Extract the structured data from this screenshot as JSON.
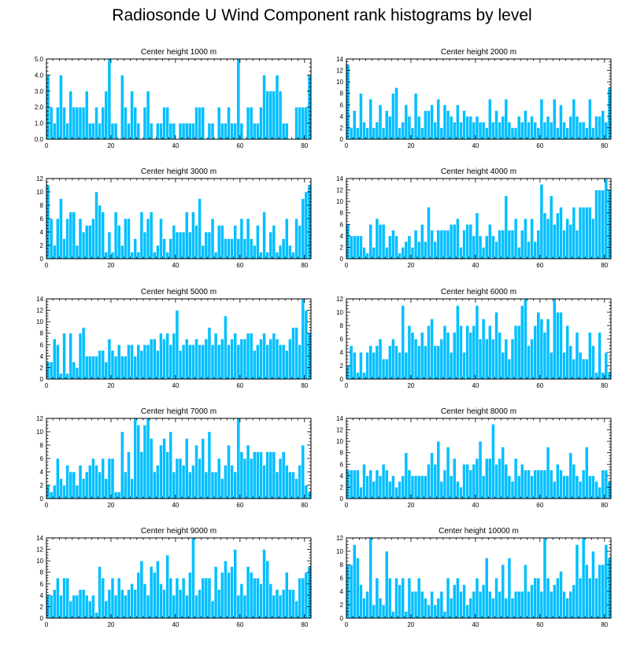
{
  "title": "Radiosonde U Wind Component rank histograms by level",
  "colors": {
    "bar": "#00bfff",
    "bar_edge": "#ffffff",
    "axis": "#000000"
  },
  "chart_data": [
    {
      "type": "bar",
      "title": "Center height 1000 m",
      "xlim": [
        0,
        82
      ],
      "ylim": [
        0,
        5
      ],
      "xticks": [
        0,
        20,
        40,
        60,
        80
      ],
      "yticks": [
        0,
        1,
        2,
        3,
        4,
        5
      ],
      "ytick_labels": [
        "0.0",
        "1.0",
        "2.0",
        "3.0",
        "4.0",
        "5.0"
      ],
      "values": [
        4,
        2,
        1,
        2,
        4,
        2,
        1,
        3,
        2,
        2,
        2,
        2,
        3,
        1,
        1,
        2,
        1,
        2,
        3,
        5,
        1,
        1,
        0,
        4,
        2,
        1,
        3,
        2,
        1,
        0,
        2,
        3,
        1,
        0,
        1,
        1,
        2,
        2,
        1,
        1,
        0,
        1,
        1,
        1,
        1,
        1,
        2,
        2,
        2,
        0,
        1,
        1,
        0,
        2,
        1,
        1,
        2,
        1,
        1,
        5,
        1,
        0,
        2,
        2,
        1,
        1,
        2,
        4,
        3,
        3,
        3,
        4,
        3,
        1,
        1,
        0,
        0,
        2,
        2,
        2,
        2,
        4
      ]
    },
    {
      "type": "bar",
      "title": "Center height 2000 m",
      "xlim": [
        0,
        82
      ],
      "ylim": [
        0,
        14
      ],
      "xticks": [
        0,
        20,
        40,
        60,
        80
      ],
      "yticks": [
        0,
        2,
        4,
        6,
        8,
        10,
        12,
        14
      ],
      "ytick_labels": [
        "0",
        "2",
        "4",
        "6",
        "8",
        "10",
        "12",
        "14"
      ],
      "values": [
        13,
        2,
        5,
        2,
        8,
        3,
        2,
        7,
        2,
        3,
        6,
        2,
        5,
        4,
        8,
        9,
        2,
        3,
        6,
        4,
        2,
        8,
        4,
        2,
        5,
        5,
        6,
        3,
        7,
        2,
        6,
        5,
        4,
        3,
        6,
        3,
        5,
        4,
        4,
        3,
        4,
        3,
        3,
        2,
        7,
        3,
        5,
        3,
        4,
        7,
        3,
        2,
        2,
        4,
        3,
        5,
        3,
        4,
        3,
        2,
        7,
        3,
        4,
        3,
        7,
        2,
        6,
        3,
        2,
        4,
        7,
        4,
        3,
        3,
        2,
        7,
        2,
        4,
        4,
        5,
        3,
        9
      ]
    },
    {
      "type": "bar",
      "title": "Center height 3000 m",
      "xlim": [
        0,
        82
      ],
      "ylim": [
        0,
        12
      ],
      "xticks": [
        0,
        20,
        40,
        60,
        80
      ],
      "yticks": [
        0,
        2,
        4,
        6,
        8,
        10,
        12
      ],
      "ytick_labels": [
        "0",
        "2",
        "4",
        "6",
        "8",
        "10",
        "12"
      ],
      "values": [
        11,
        6,
        2,
        6,
        9,
        3,
        6,
        7,
        7,
        2,
        6,
        4,
        5,
        5,
        6,
        10,
        8,
        7,
        1,
        4,
        1,
        7,
        5,
        2,
        6,
        6,
        1,
        3,
        1,
        7,
        4,
        6,
        7,
        1,
        2,
        6,
        3,
        1,
        3,
        5,
        4,
        4,
        4,
        7,
        4,
        7,
        5,
        9,
        2,
        4,
        4,
        6,
        1,
        5,
        5,
        3,
        3,
        3,
        5,
        3,
        6,
        3,
        6,
        3,
        2,
        5,
        1,
        7,
        1,
        4,
        5,
        1,
        2,
        3,
        6,
        2,
        1,
        6,
        5,
        9,
        10,
        11
      ]
    },
    {
      "type": "bar",
      "title": "Center height 4000 m",
      "xlim": [
        0,
        82
      ],
      "ylim": [
        0,
        14
      ],
      "xticks": [
        0,
        20,
        40,
        60,
        80
      ],
      "yticks": [
        0,
        2,
        4,
        6,
        8,
        10,
        12,
        14
      ],
      "ytick_labels": [
        "0",
        "2",
        "4",
        "6",
        "8",
        "10",
        "12",
        "14"
      ],
      "values": [
        6,
        4,
        4,
        4,
        4,
        2,
        1,
        6,
        2,
        7,
        6,
        6,
        2,
        4,
        5,
        4,
        1,
        2,
        3,
        4,
        2,
        5,
        3,
        6,
        3,
        9,
        5,
        3,
        5,
        5,
        5,
        5,
        6,
        6,
        7,
        2,
        5,
        6,
        6,
        4,
        8,
        4,
        2,
        4,
        6,
        4,
        3,
        5,
        5,
        11,
        5,
        5,
        7,
        2,
        5,
        7,
        3,
        7,
        3,
        5,
        13,
        8,
        7,
        11,
        6,
        8,
        9,
        5,
        7,
        6,
        9,
        5,
        9,
        9,
        9,
        9,
        7,
        12,
        12,
        12,
        14,
        12
      ]
    },
    {
      "type": "bar",
      "title": "Center height 5000 m",
      "xlim": [
        0,
        82
      ],
      "ylim": [
        0,
        14
      ],
      "xticks": [
        0,
        20,
        40,
        60,
        80
      ],
      "yticks": [
        0,
        2,
        4,
        6,
        8,
        10,
        12,
        14
      ],
      "ytick_labels": [
        "0",
        "2",
        "4",
        "6",
        "8",
        "10",
        "12",
        "14"
      ],
      "values": [
        3,
        3,
        7,
        6,
        1,
        8,
        1,
        8,
        3,
        2,
        8,
        9,
        4,
        4,
        4,
        4,
        5,
        5,
        3,
        7,
        5,
        4,
        6,
        4,
        4,
        6,
        6,
        4,
        6,
        5,
        6,
        6,
        7,
        7,
        5,
        8,
        7,
        8,
        6,
        8,
        12,
        5,
        6,
        7,
        6,
        6,
        7,
        6,
        6,
        7,
        9,
        6,
        8,
        6,
        7,
        11,
        6,
        7,
        8,
        6,
        7,
        7,
        8,
        8,
        5,
        6,
        7,
        8,
        6,
        7,
        8,
        7,
        6,
        6,
        5,
        7,
        9,
        9,
        6,
        14,
        12,
        8
      ]
    },
    {
      "type": "bar",
      "title": "Center height 6000 m",
      "xlim": [
        0,
        82
      ],
      "ylim": [
        0,
        12
      ],
      "xticks": [
        0,
        20,
        40,
        60,
        80
      ],
      "yticks": [
        0,
        2,
        4,
        6,
        8,
        10,
        12
      ],
      "ytick_labels": [
        "0",
        "2",
        "4",
        "6",
        "8",
        "10",
        "12"
      ],
      "values": [
        2,
        5,
        4,
        1,
        4,
        1,
        4,
        5,
        4,
        5,
        6,
        3,
        3,
        5,
        6,
        5,
        4,
        11,
        4,
        8,
        7,
        6,
        5,
        7,
        5,
        8,
        9,
        5,
        5,
        6,
        8,
        7,
        4,
        7,
        11,
        8,
        4,
        8,
        7,
        8,
        11,
        6,
        9,
        6,
        8,
        6,
        10,
        7,
        4,
        6,
        3,
        6,
        8,
        8,
        11,
        12,
        5,
        6,
        8,
        10,
        9,
        7,
        9,
        4,
        12,
        10,
        10,
        4,
        8,
        5,
        3,
        7,
        4,
        3,
        3,
        7,
        5,
        1,
        7,
        1,
        4,
        1
      ]
    },
    {
      "type": "bar",
      "title": "Center height 7000 m",
      "xlim": [
        0,
        82
      ],
      "ylim": [
        0,
        12
      ],
      "xticks": [
        0,
        20,
        40,
        60,
        80
      ],
      "yticks": [
        0,
        2,
        4,
        6,
        8,
        10,
        12
      ],
      "ytick_labels": [
        "0",
        "2",
        "4",
        "6",
        "8",
        "10",
        "12"
      ],
      "values": [
        2,
        1,
        2,
        6,
        3,
        2,
        5,
        4,
        4,
        2,
        5,
        3,
        4,
        5,
        6,
        5,
        4,
        6,
        3,
        6,
        6,
        1,
        1,
        10,
        4,
        7,
        3,
        12,
        11,
        7,
        11,
        12,
        9,
        4,
        5,
        8,
        9,
        7,
        10,
        4,
        6,
        6,
        5,
        9,
        4,
        5,
        8,
        6,
        9,
        4,
        10,
        4,
        4,
        6,
        3,
        5,
        8,
        5,
        4,
        12,
        7,
        6,
        8,
        6,
        7,
        7,
        7,
        5,
        7,
        7,
        7,
        4,
        6,
        7,
        5,
        4,
        4,
        3,
        5,
        8,
        2,
        1
      ]
    },
    {
      "type": "bar",
      "title": "Center height 8000 m",
      "xlim": [
        0,
        82
      ],
      "ylim": [
        0,
        14
      ],
      "xticks": [
        0,
        20,
        40,
        60,
        80
      ],
      "yticks": [
        0,
        2,
        4,
        6,
        8,
        10,
        12,
        14
      ],
      "ytick_labels": [
        "0",
        "2",
        "4",
        "6",
        "8",
        "10",
        "12",
        "14"
      ],
      "values": [
        5,
        5,
        5,
        5,
        2,
        6,
        4,
        5,
        3,
        5,
        4,
        6,
        5,
        3,
        4,
        2,
        3,
        4,
        8,
        5,
        4,
        4,
        4,
        4,
        4,
        6,
        8,
        6,
        10,
        3,
        5,
        9,
        4,
        7,
        3,
        2,
        6,
        6,
        5,
        6,
        7,
        10,
        4,
        7,
        7,
        13,
        6,
        7,
        9,
        6,
        4,
        3,
        7,
        4,
        6,
        5,
        5,
        4,
        5,
        5,
        5,
        5,
        9,
        5,
        3,
        6,
        5,
        4,
        4,
        8,
        6,
        4,
        3,
        5,
        9,
        4,
        4,
        3,
        2,
        5,
        5,
        3
      ]
    },
    {
      "type": "bar",
      "title": "Center height 9000 m",
      "xlim": [
        0,
        82
      ],
      "ylim": [
        0,
        14
      ],
      "xticks": [
        0,
        20,
        40,
        60,
        80
      ],
      "yticks": [
        0,
        2,
        4,
        6,
        8,
        10,
        12,
        14
      ],
      "ytick_labels": [
        "0",
        "2",
        "4",
        "6",
        "8",
        "10",
        "12",
        "14"
      ],
      "values": [
        4,
        4,
        5,
        7,
        4,
        7,
        7,
        3,
        4,
        4,
        5,
        5,
        4,
        3,
        4,
        1,
        9,
        7,
        3,
        5,
        7,
        4,
        7,
        5,
        4,
        5,
        6,
        5,
        8,
        10,
        6,
        4,
        9,
        8,
        10,
        6,
        5,
        11,
        7,
        4,
        7,
        5,
        7,
        4,
        8,
        14,
        4,
        5,
        7,
        7,
        7,
        3,
        9,
        5,
        8,
        10,
        8,
        9,
        12,
        4,
        6,
        4,
        9,
        8,
        7,
        7,
        6,
        12,
        10,
        6,
        4,
        5,
        4,
        5,
        8,
        5,
        5,
        3,
        7,
        7,
        8,
        9
      ]
    },
    {
      "type": "bar",
      "title": "Center height 10000 m",
      "xlim": [
        0,
        82
      ],
      "ylim": [
        0,
        12
      ],
      "xticks": [
        0,
        20,
        40,
        60,
        80
      ],
      "yticks": [
        0,
        2,
        4,
        6,
        8,
        10,
        12
      ],
      "ytick_labels": [
        "0",
        "2",
        "4",
        "6",
        "8",
        "10",
        "12"
      ],
      "values": [
        8,
        8,
        11,
        9,
        5,
        3,
        4,
        12,
        2,
        6,
        3,
        2,
        10,
        6,
        1,
        6,
        5,
        6,
        1,
        6,
        4,
        4,
        6,
        4,
        3,
        2,
        4,
        2,
        3,
        4,
        1,
        6,
        3,
        5,
        6,
        4,
        5,
        2,
        3,
        4,
        6,
        4,
        5,
        9,
        4,
        3,
        6,
        4,
        8,
        3,
        9,
        3,
        4,
        4,
        4,
        8,
        4,
        5,
        6,
        6,
        4,
        12,
        6,
        4,
        5,
        6,
        7,
        4,
        3,
        4,
        5,
        11,
        6,
        12,
        8,
        6,
        10,
        6,
        8,
        8,
        11,
        9
      ]
    }
  ]
}
